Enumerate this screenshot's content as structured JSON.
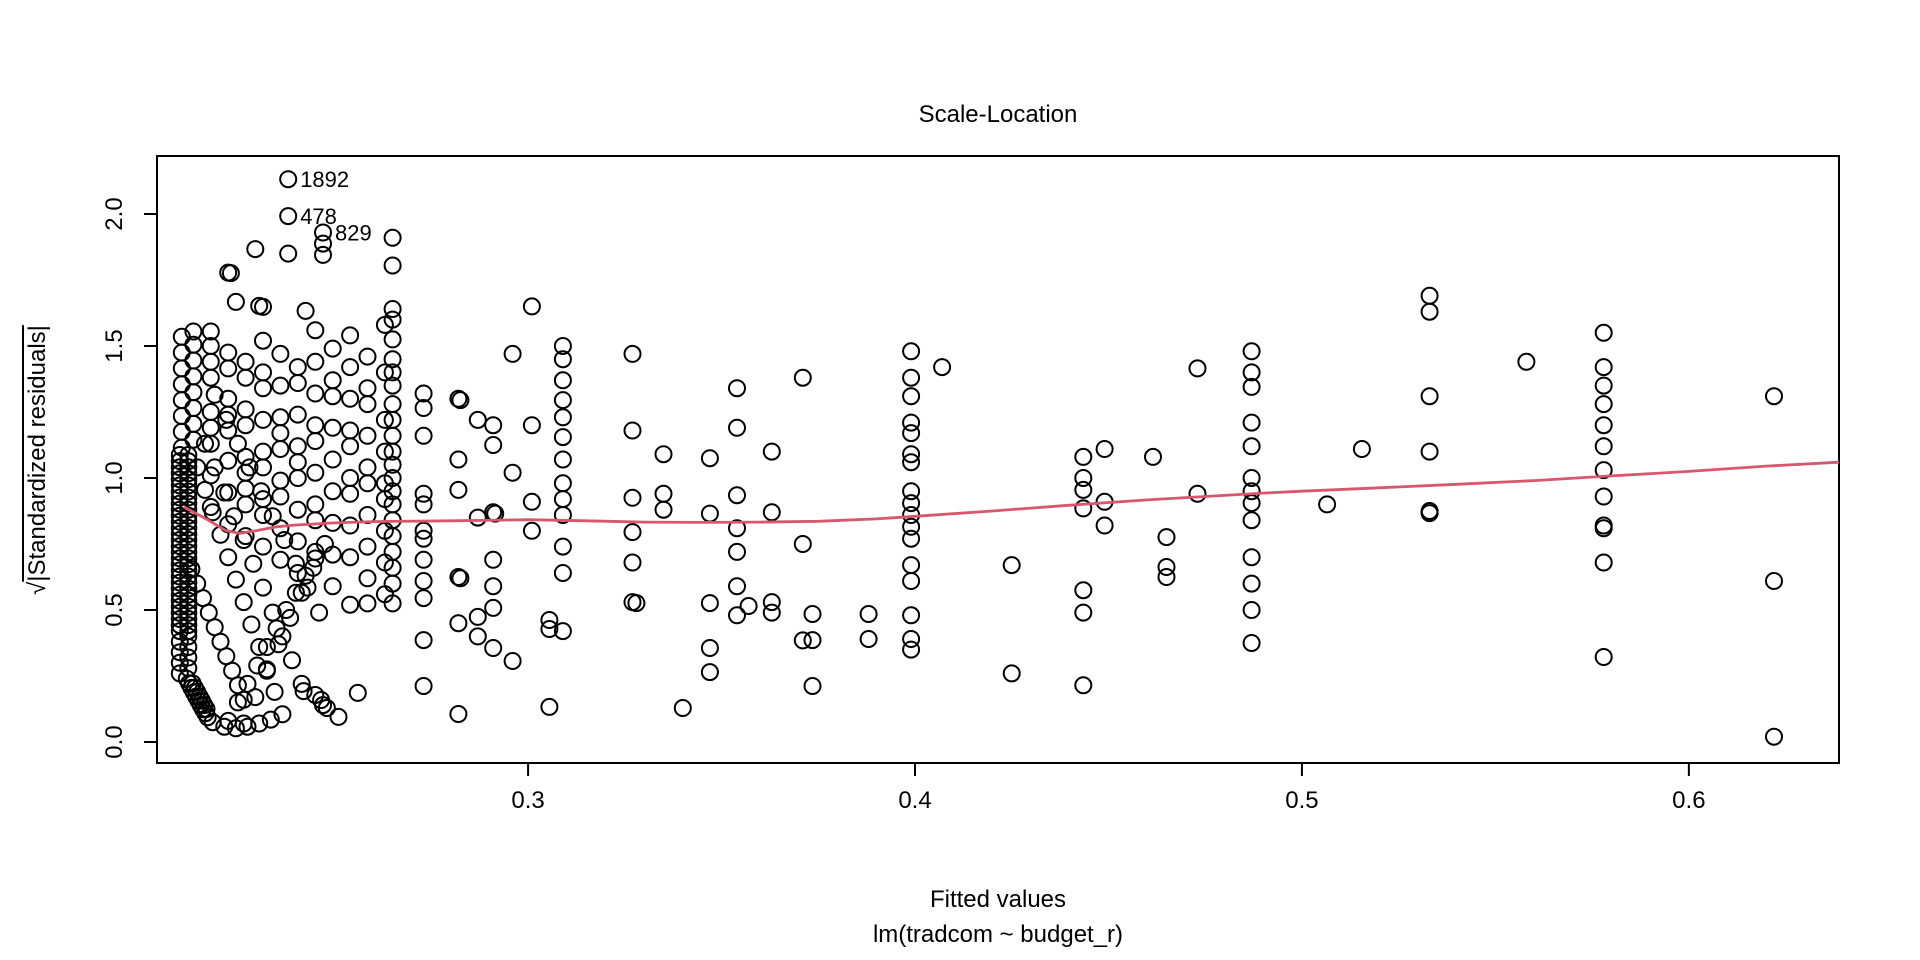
{
  "chart_data": {
    "type": "scatter",
    "title": "Scale-Location",
    "xlabel": "Fitted values",
    "sublabel": "lm(tradcom ~ budget_r)",
    "ylabel_sqrt": "√",
    "ylabel_body": "|Standardized residuals|",
    "xlim": [
      0.2041,
      0.6388
    ],
    "ylim": [
      -0.0795,
      2.2197
    ],
    "x_ticks": {
      "values": [
        0.3,
        0.4,
        0.5,
        0.6
      ],
      "labels": [
        "0.3",
        "0.4",
        "0.5",
        "0.6"
      ]
    },
    "y_ticks": {
      "values": [
        0.0,
        0.5,
        1.0,
        1.5,
        2.0
      ],
      "labels": [
        "0.0",
        "0.5",
        "1.0",
        "1.5",
        "2.0"
      ]
    },
    "grid": false,
    "legend": "none",
    "point_color": "#000000",
    "smooth_color": "#d8566e",
    "labeled_points": [
      {
        "label": "1892",
        "x": 0.238,
        "y": 2.132
      },
      {
        "label": "478",
        "x": 0.238,
        "y": 1.992
      },
      {
        "label": "829",
        "x": 0.247,
        "y": 1.93
      }
    ],
    "smooth": [
      [
        0.211,
        0.89
      ],
      [
        0.216,
        0.852
      ],
      [
        0.222,
        0.8
      ],
      [
        0.2255,
        0.79
      ],
      [
        0.23,
        0.801
      ],
      [
        0.235,
        0.815
      ],
      [
        0.24,
        0.822
      ],
      [
        0.25,
        0.83
      ],
      [
        0.26,
        0.835
      ],
      [
        0.28,
        0.838
      ],
      [
        0.3,
        0.842
      ],
      [
        0.315,
        0.838
      ],
      [
        0.33,
        0.833
      ],
      [
        0.345,
        0.832
      ],
      [
        0.36,
        0.833
      ],
      [
        0.375,
        0.836
      ],
      [
        0.39,
        0.845
      ],
      [
        0.4,
        0.855
      ],
      [
        0.42,
        0.875
      ],
      [
        0.44,
        0.897
      ],
      [
        0.46,
        0.917
      ],
      [
        0.48,
        0.934
      ],
      [
        0.49,
        0.943
      ],
      [
        0.5,
        0.95
      ],
      [
        0.52,
        0.963
      ],
      [
        0.54,
        0.976
      ],
      [
        0.56,
        0.99
      ],
      [
        0.58,
        1.008
      ],
      [
        0.6,
        1.025
      ],
      [
        0.62,
        1.045
      ],
      [
        0.6388,
        1.06
      ]
    ],
    "columns": [
      {
        "x": 0.21,
        "ys": [
          0.26,
          0.3,
          0.34,
          0.38,
          0.42,
          0.443,
          0.466,
          0.489,
          0.512,
          0.535,
          0.558,
          0.581,
          0.604,
          0.627,
          0.65,
          0.673,
          0.696,
          0.719,
          0.742,
          0.765,
          0.788,
          0.811,
          0.834,
          0.857,
          0.88,
          0.903,
          0.926,
          0.949,
          0.972,
          0.995,
          1.018,
          1.041,
          1.064,
          1.087
        ]
      },
      {
        "x": 0.2122,
        "ys": [
          0.28,
          0.32,
          0.36,
          0.4,
          0.42,
          0.443,
          0.466,
          0.489,
          0.512,
          0.535,
          0.558,
          0.581,
          0.604,
          0.627,
          0.65,
          0.673,
          0.696,
          0.719,
          0.742,
          0.765,
          0.788,
          0.811,
          0.834,
          0.857,
          0.88,
          0.903,
          0.926,
          0.949,
          0.972,
          0.995,
          1.018,
          1.041,
          1.064,
          1.087
        ]
      },
      {
        "x": 0.2105,
        "ys": [
          1.115,
          1.175,
          1.235,
          1.295,
          1.355,
          1.415,
          1.475,
          1.535
        ]
      },
      {
        "x": 0.2135,
        "ys": [
          1.145,
          1.205,
          1.265,
          1.325,
          1.385,
          1.445,
          1.505,
          1.555
        ]
      },
      {
        "x": 0.218,
        "ys": [
          1.555,
          1.5,
          1.44,
          1.38,
          1.25,
          1.19,
          1.13,
          1.01,
          0.89
        ]
      },
      {
        "x": 0.2225,
        "ys": [
          1.475,
          1.415,
          1.3,
          1.24,
          1.18,
          1.065,
          0.945,
          0.825
        ]
      },
      {
        "x": 0.227,
        "ys": [
          1.44,
          1.38,
          1.26,
          1.2,
          1.08,
          1.02,
          0.96,
          0.9,
          0.78
        ]
      },
      {
        "x": 0.2315,
        "ys": [
          1.52,
          1.4,
          1.34,
          1.22,
          1.1,
          1.04,
          0.92,
          0.86,
          0.74
        ]
      },
      {
        "x": 0.236,
        "ys": [
          1.47,
          1.35,
          1.23,
          1.17,
          1.11,
          0.99,
          0.93,
          0.81,
          0.69
        ]
      },
      {
        "x": 0.2405,
        "ys": [
          1.42,
          1.36,
          1.24,
          1.12,
          1.06,
          1.0,
          0.88,
          0.76,
          0.64
        ]
      },
      {
        "x": 0.245,
        "ys": [
          1.56,
          1.44,
          1.32,
          1.2,
          1.14,
          1.02,
          0.9,
          0.84,
          0.72
        ]
      },
      {
        "x": 0.2495,
        "ys": [
          1.49,
          1.37,
          1.31,
          1.19,
          1.07,
          0.95,
          0.83,
          0.71,
          0.59
        ]
      },
      {
        "x": 0.254,
        "ys": [
          1.54,
          1.42,
          1.3,
          1.18,
          1.12,
          1.0,
          0.94,
          0.82,
          0.7,
          0.52
        ]
      },
      {
        "x": 0.2585,
        "ys": [
          1.46,
          1.34,
          1.28,
          1.16,
          1.04,
          0.98,
          0.86,
          0.74,
          0.62,
          0.525
        ]
      },
      {
        "x": 0.263,
        "ys": [
          1.58,
          1.4,
          1.22,
          1.1,
          0.98,
          0.92,
          0.8,
          0.68,
          0.56
        ]
      },
      {
        "x": 0.265,
        "ys": [
          1.91,
          1.805,
          1.64,
          1.6,
          1.525,
          1.45,
          1.4,
          1.35,
          1.28,
          1.22,
          1.16,
          1.1,
          1.05,
          1.0,
          0.95,
          0.9,
          0.84,
          0.78,
          0.72,
          0.66,
          0.6,
          0.525
        ]
      },
      {
        "x": 0.273,
        "ys": [
          1.32,
          1.265,
          1.16,
          0.94,
          0.9,
          0.8,
          0.77,
          0.69,
          0.61,
          0.545,
          0.386,
          0.212
        ]
      },
      {
        "x": 0.282,
        "ys": [
          1.3,
          1.07,
          0.955,
          0.625,
          0.45,
          0.106
        ]
      },
      {
        "x": 0.2825,
        "ys": [
          1.295,
          0.62
        ]
      },
      {
        "x": 0.287,
        "ys": [
          1.22,
          0.85,
          0.474,
          0.4
        ]
      },
      {
        "x": 0.291,
        "ys": [
          1.2,
          1.125,
          0.87,
          0.69,
          0.59,
          0.508,
          0.356
        ]
      },
      {
        "x": 0.2915,
        "ys": [
          0.865
        ]
      },
      {
        "x": 0.296,
        "ys": [
          1.47,
          1.02,
          0.307
        ]
      },
      {
        "x": 0.301,
        "ys": [
          1.65,
          1.2,
          0.91,
          0.8
        ]
      },
      {
        "x": 0.3055,
        "ys": [
          0.462,
          0.428,
          0.133
        ]
      },
      {
        "x": 0.309,
        "ys": [
          1.5,
          1.45,
          1.37,
          1.295,
          1.23,
          1.155,
          1.07,
          0.98,
          0.92,
          0.86,
          0.74,
          0.64,
          0.42
        ]
      },
      {
        "x": 0.327,
        "ys": [
          1.47,
          1.18,
          0.925,
          0.795,
          0.68,
          0.53
        ]
      },
      {
        "x": 0.328,
        "ys": [
          0.526
        ]
      },
      {
        "x": 0.335,
        "ys": [
          1.09,
          0.94,
          0.88
        ]
      },
      {
        "x": 0.34,
        "ys": [
          0.129
        ]
      },
      {
        "x": 0.347,
        "ys": [
          1.075,
          0.865,
          0.526,
          0.356,
          0.265
        ]
      },
      {
        "x": 0.354,
        "ys": [
          1.34,
          1.19,
          0.935,
          0.81,
          0.72,
          0.59,
          0.48
        ]
      },
      {
        "x": 0.357,
        "ys": [
          0.515
        ]
      },
      {
        "x": 0.363,
        "ys": [
          1.1,
          0.87,
          0.53,
          0.49
        ]
      },
      {
        "x": 0.371,
        "ys": [
          1.38,
          0.75,
          0.385
        ]
      },
      {
        "x": 0.3735,
        "ys": [
          0.485,
          0.386,
          0.212
        ]
      },
      {
        "x": 0.388,
        "ys": [
          0.485,
          0.39
        ]
      },
      {
        "x": 0.399,
        "ys": [
          1.48,
          1.38,
          1.31,
          1.21,
          1.17,
          1.09,
          1.06,
          0.95,
          0.905,
          0.86,
          0.815,
          0.77,
          0.67,
          0.61,
          0.48,
          0.39,
          0.35
        ]
      },
      {
        "x": 0.407,
        "ys": [
          1.42
        ]
      },
      {
        "x": 0.425,
        "ys": [
          0.67,
          0.26
        ]
      },
      {
        "x": 0.4435,
        "ys": [
          1.08,
          1.0,
          0.955,
          0.885,
          0.575,
          0.49,
          0.215
        ]
      },
      {
        "x": 0.449,
        "ys": [
          1.11,
          0.91,
          0.82
        ]
      },
      {
        "x": 0.4615,
        "ys": [
          1.08
        ]
      },
      {
        "x": 0.465,
        "ys": [
          0.776,
          0.663,
          0.625
        ]
      },
      {
        "x": 0.473,
        "ys": [
          1.415,
          0.94
        ]
      },
      {
        "x": 0.487,
        "ys": [
          1.48,
          1.4,
          1.345,
          1.21,
          1.12,
          1.0,
          0.95,
          0.905,
          0.84,
          0.7,
          0.6,
          0.5,
          0.375
        ]
      },
      {
        "x": 0.5065,
        "ys": [
          0.9
        ]
      },
      {
        "x": 0.5155,
        "ys": [
          1.11
        ]
      },
      {
        "x": 0.533,
        "ys": [
          1.69,
          1.63,
          1.31,
          1.1,
          0.875,
          0.867
        ]
      },
      {
        "x": 0.558,
        "ys": [
          1.44
        ]
      },
      {
        "x": 0.578,
        "ys": [
          1.55,
          1.42,
          1.35,
          1.28,
          1.2,
          1.12,
          1.03,
          0.93,
          0.82,
          0.81,
          0.68,
          0.322
        ]
      },
      {
        "x": 0.622,
        "ys": [
          1.31,
          0.61,
          0.02
        ]
      }
    ],
    "points": [
      [
        0.2118,
        0.24
      ],
      [
        0.2124,
        0.222
      ],
      [
        0.213,
        0.205
      ],
      [
        0.2136,
        0.188
      ],
      [
        0.2142,
        0.172
      ],
      [
        0.2148,
        0.156
      ],
      [
        0.2154,
        0.14
      ],
      [
        0.216,
        0.124
      ],
      [
        0.2166,
        0.109
      ],
      [
        0.2172,
        0.094
      ],
      [
        0.2139,
        0.205
      ],
      [
        0.2151,
        0.172
      ],
      [
        0.2163,
        0.14
      ],
      [
        0.2133,
        0.222
      ],
      [
        0.2145,
        0.19
      ],
      [
        0.2157,
        0.157
      ],
      [
        0.2169,
        0.125
      ],
      [
        0.2185,
        0.075
      ],
      [
        0.2215,
        0.058
      ],
      [
        0.2245,
        0.052
      ],
      [
        0.2275,
        0.058
      ],
      [
        0.2305,
        0.07
      ],
      [
        0.2335,
        0.085
      ],
      [
        0.242,
        0.193
      ],
      [
        0.245,
        0.178
      ],
      [
        0.2465,
        0.159
      ],
      [
        0.247,
        0.14
      ],
      [
        0.248,
        0.129
      ],
      [
        0.251,
        0.095
      ],
      [
        0.256,
        0.186
      ],
      [
        0.2145,
        1.04
      ],
      [
        0.2165,
        0.955
      ],
      [
        0.2185,
        0.87
      ],
      [
        0.2205,
        0.785
      ],
      [
        0.2225,
        0.7
      ],
      [
        0.2245,
        0.615
      ],
      [
        0.2265,
        0.53
      ],
      [
        0.2285,
        0.445
      ],
      [
        0.2305,
        0.36
      ],
      [
        0.2325,
        0.275
      ],
      [
        0.2345,
        0.19
      ],
      [
        0.2365,
        0.105
      ],
      [
        0.2165,
        1.13
      ],
      [
        0.219,
        1.04
      ],
      [
        0.2215,
        0.945
      ],
      [
        0.224,
        0.855
      ],
      [
        0.2265,
        0.765
      ],
      [
        0.229,
        0.675
      ],
      [
        0.2315,
        0.585
      ],
      [
        0.234,
        0.49
      ],
      [
        0.2365,
        0.4
      ],
      [
        0.239,
        0.31
      ],
      [
        0.2415,
        0.22
      ],
      [
        0.213,
        0.655
      ],
      [
        0.2145,
        0.6
      ],
      [
        0.216,
        0.545
      ],
      [
        0.2175,
        0.49
      ],
      [
        0.219,
        0.435
      ],
      [
        0.2205,
        0.38
      ],
      [
        0.222,
        0.325
      ],
      [
        0.2235,
        0.27
      ],
      [
        0.225,
        0.215
      ],
      [
        0.2265,
        0.16
      ],
      [
        0.2225,
        0.08
      ],
      [
        0.225,
        0.15
      ],
      [
        0.2275,
        0.22
      ],
      [
        0.23,
        0.29
      ],
      [
        0.2325,
        0.36
      ],
      [
        0.235,
        0.43
      ],
      [
        0.2375,
        0.5
      ],
      [
        0.24,
        0.565
      ],
      [
        0.2425,
        0.63
      ],
      [
        0.245,
        0.695
      ],
      [
        0.2265,
        0.07
      ],
      [
        0.2295,
        0.17
      ],
      [
        0.2325,
        0.27
      ],
      [
        0.2355,
        0.37
      ],
      [
        0.2385,
        0.47
      ],
      [
        0.2415,
        0.565
      ],
      [
        0.2445,
        0.66
      ],
      [
        0.2475,
        0.75
      ],
      [
        0.219,
        1.315
      ],
      [
        0.222,
        1.22
      ],
      [
        0.225,
        1.13
      ],
      [
        0.228,
        1.04
      ],
      [
        0.231,
        0.95
      ],
      [
        0.234,
        0.855
      ],
      [
        0.237,
        0.765
      ],
      [
        0.24,
        0.675
      ],
      [
        0.243,
        0.585
      ],
      [
        0.246,
        0.49
      ],
      [
        0.2295,
        1.867
      ],
      [
        0.238,
        1.85
      ],
      [
        0.2225,
        1.778
      ],
      [
        0.2232,
        1.776
      ],
      [
        0.2245,
        1.667
      ],
      [
        0.2305,
        1.652
      ],
      [
        0.2315,
        1.648
      ],
      [
        0.2425,
        1.633
      ],
      [
        0.247,
        1.888
      ],
      [
        0.247,
        1.845
      ]
    ]
  }
}
